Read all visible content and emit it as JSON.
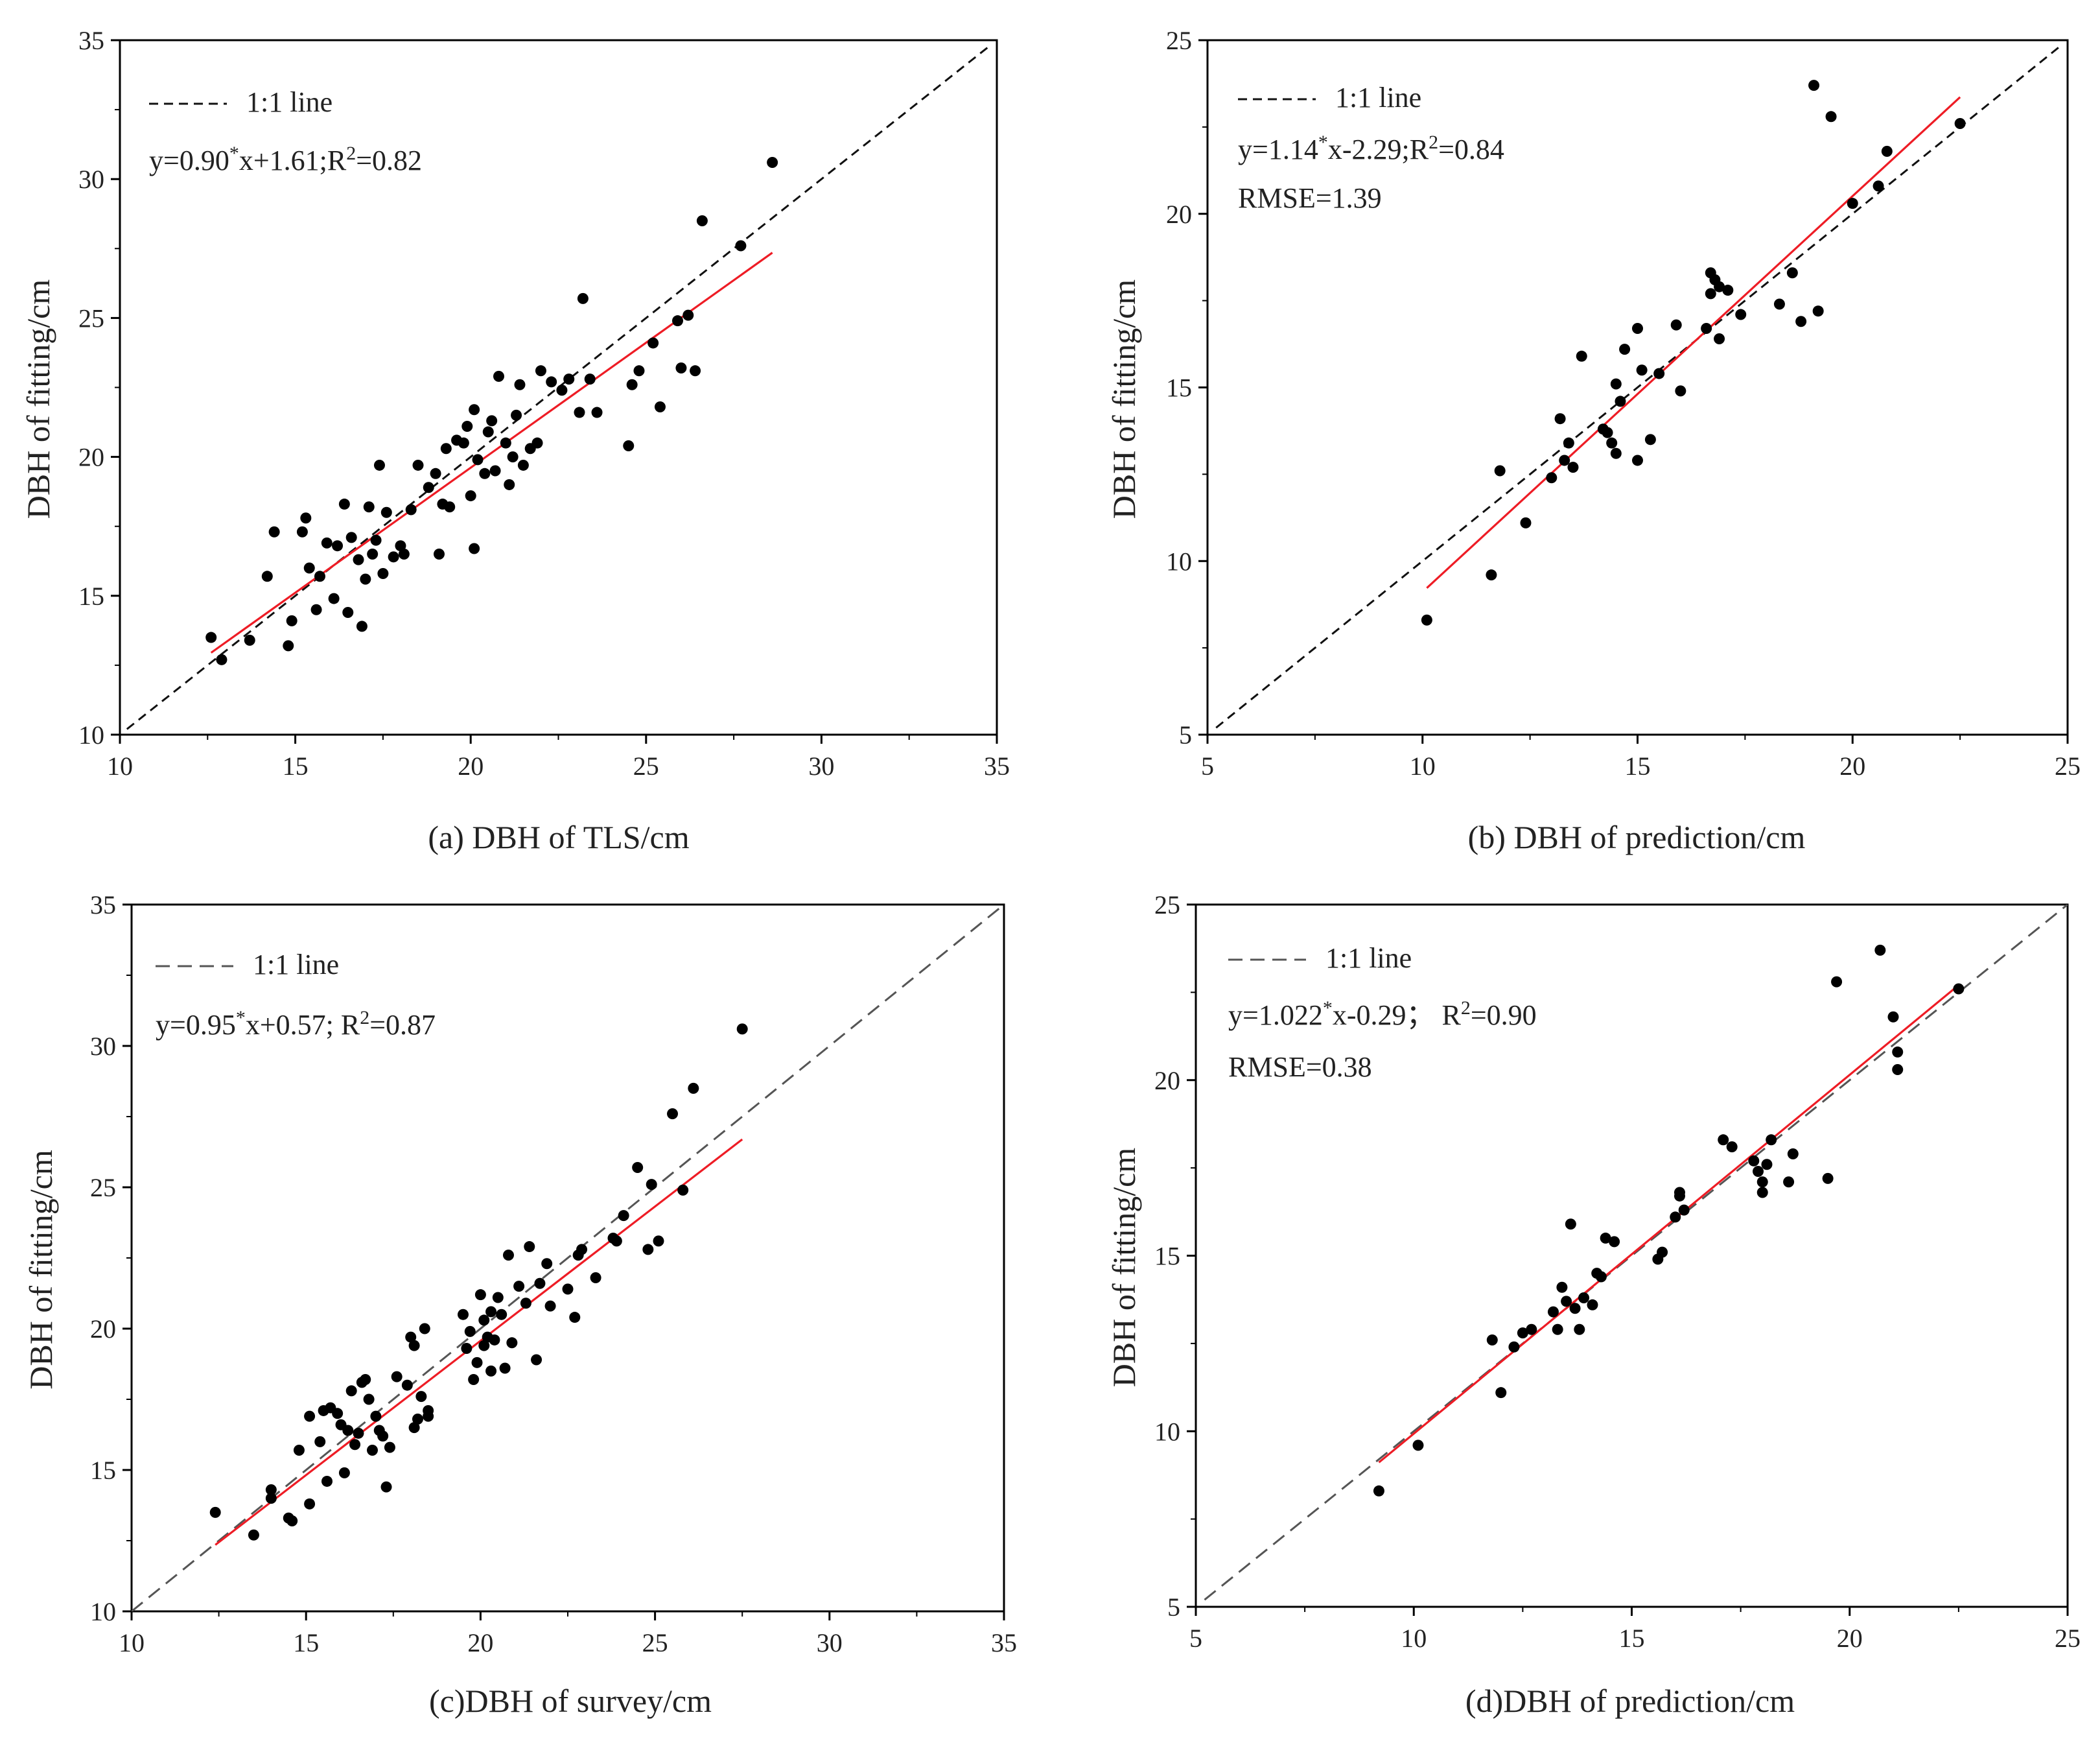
{
  "colors": {
    "fit_line": "#ee1c25",
    "points": "#000000",
    "ref_line_ab": "#111111",
    "ref_line_cd": "#555555",
    "axis": "#000000"
  },
  "chart_data": [
    {
      "type": "scatter",
      "panel": "a",
      "xlabel": "(a) DBH of TLS/cm",
      "ylabel": "DBH of fitting/cm",
      "xlim": [
        10,
        35
      ],
      "ylim": [
        10,
        35
      ],
      "xticks": [
        "10",
        "15",
        "20",
        "25",
        "30",
        "35"
      ],
      "yticks": [
        "10",
        "15",
        "20",
        "25",
        "30",
        "35"
      ],
      "legend_label": "1:1 line",
      "equation": {
        "pre": "y=0.90",
        "star": "*",
        "mid": "x+1.61;R",
        "sup": "2",
        "post": "=0.82"
      },
      "rmse": "",
      "fit": {
        "slope": 0.9,
        "intercept": 1.61,
        "x_range": [
          12.6,
          28.6
        ]
      },
      "ref_line_range": [
        10.2,
        34.8
      ],
      "points": [
        [
          12.6,
          13.5
        ],
        [
          12.9,
          12.7
        ],
        [
          13.7,
          13.4
        ],
        [
          14.2,
          15.7
        ],
        [
          14.4,
          17.3
        ],
        [
          14.8,
          13.2
        ],
        [
          14.9,
          14.1
        ],
        [
          15.2,
          17.3
        ],
        [
          15.3,
          17.8
        ],
        [
          15.4,
          16
        ],
        [
          15.6,
          14.5
        ],
        [
          15.7,
          15.7
        ],
        [
          15.9,
          16.9
        ],
        [
          16.1,
          14.9
        ],
        [
          16.2,
          16.8
        ],
        [
          16.4,
          18.3
        ],
        [
          16.5,
          14.4
        ],
        [
          16.6,
          17.1
        ],
        [
          16.8,
          16.3
        ],
        [
          16.9,
          13.9
        ],
        [
          17.0,
          15.6
        ],
        [
          17.1,
          18.2
        ],
        [
          17.2,
          16.5
        ],
        [
          17.3,
          17
        ],
        [
          17.4,
          19.7
        ],
        [
          17.5,
          15.8
        ],
        [
          17.6,
          18
        ],
        [
          17.8,
          16.4
        ],
        [
          18.0,
          16.8
        ],
        [
          18.1,
          16.5
        ],
        [
          18.3,
          18.1
        ],
        [
          18.5,
          19.7
        ],
        [
          18.8,
          18.9
        ],
        [
          19.0,
          19.4
        ],
        [
          19.1,
          16.5
        ],
        [
          19.2,
          18.3
        ],
        [
          19.3,
          20.3
        ],
        [
          19.4,
          18.2
        ],
        [
          19.6,
          20.6
        ],
        [
          19.8,
          20.5
        ],
        [
          19.9,
          21.1
        ],
        [
          20.0,
          18.6
        ],
        [
          20.1,
          16.7
        ],
        [
          20.1,
          21.7
        ],
        [
          20.2,
          19.9
        ],
        [
          20.4,
          19.4
        ],
        [
          20.5,
          20.9
        ],
        [
          20.6,
          21.3
        ],
        [
          20.7,
          19.5
        ],
        [
          20.8,
          22.9
        ],
        [
          21.0,
          20.5
        ],
        [
          21.1,
          19
        ],
        [
          21.2,
          20
        ],
        [
          21.3,
          21.5
        ],
        [
          21.4,
          22.6
        ],
        [
          21.5,
          19.7
        ],
        [
          21.7,
          20.3
        ],
        [
          21.9,
          20.5
        ],
        [
          22.0,
          23.1
        ],
        [
          22.3,
          22.7
        ],
        [
          22.6,
          22.4
        ],
        [
          22.8,
          22.8
        ],
        [
          23.1,
          21.6
        ],
        [
          23.2,
          25.7
        ],
        [
          23.4,
          22.8
        ],
        [
          23.6,
          21.6
        ],
        [
          24.5,
          20.4
        ],
        [
          24.6,
          22.6
        ],
        [
          24.8,
          23.1
        ],
        [
          25.2,
          24.1
        ],
        [
          25.4,
          21.8
        ],
        [
          25.9,
          24.9
        ],
        [
          26.0,
          23.2
        ],
        [
          26.2,
          25.1
        ],
        [
          26.4,
          23.1
        ],
        [
          26.6,
          28.5
        ],
        [
          27.7,
          27.6
        ],
        [
          28.6,
          30.6
        ]
      ]
    },
    {
      "type": "scatter",
      "panel": "b",
      "xlabel": "(b) DBH of prediction/cm",
      "ylabel": "DBH of fitting/cm",
      "xlim": [
        5,
        25
      ],
      "ylim": [
        5,
        25
      ],
      "xticks": [
        "5",
        "10",
        "15",
        "20",
        "25"
      ],
      "yticks": [
        "5",
        "10",
        "15",
        "20",
        "25"
      ],
      "legend_label": "1:1 line",
      "equation": {
        "pre": "y=1.14",
        "star": "*",
        "mid": "x-2.29;R",
        "sup": "2",
        "post": "=0.84"
      },
      "rmse": "RMSE=1.39",
      "fit": {
        "slope": 1.14,
        "intercept": -2.29,
        "x_range": [
          10.1,
          22.5
        ]
      },
      "ref_line_range": [
        5.2,
        24.8
      ],
      "points": [
        [
          10.1,
          8.3
        ],
        [
          11.6,
          9.6
        ],
        [
          11.8,
          12.6
        ],
        [
          12.4,
          11.1
        ],
        [
          13.0,
          12.4
        ],
        [
          13.2,
          14.1
        ],
        [
          13.3,
          12.9
        ],
        [
          13.4,
          13.4
        ],
        [
          13.5,
          12.7
        ],
        [
          13.7,
          15.9
        ],
        [
          14.2,
          13.8
        ],
        [
          14.3,
          13.7
        ],
        [
          14.4,
          13.4
        ],
        [
          14.5,
          15.1
        ],
        [
          14.5,
          13.1
        ],
        [
          14.6,
          14.6
        ],
        [
          14.7,
          16.1
        ],
        [
          15.0,
          16.7
        ],
        [
          15.0,
          12.9
        ],
        [
          15.1,
          15.5
        ],
        [
          15.3,
          13.5
        ],
        [
          15.5,
          15.4
        ],
        [
          15.9,
          16.8
        ],
        [
          16.0,
          14.9
        ],
        [
          16.6,
          16.7
        ],
        [
          16.7,
          18.3
        ],
        [
          16.8,
          18.1
        ],
        [
          16.7,
          17.7
        ],
        [
          16.9,
          17.9
        ],
        [
          16.9,
          16.4
        ],
        [
          17.1,
          17.8
        ],
        [
          17.4,
          17.1
        ],
        [
          18.3,
          17.4
        ],
        [
          18.6,
          18.3
        ],
        [
          18.8,
          16.9
        ],
        [
          19.1,
          23.7
        ],
        [
          19.2,
          17.2
        ],
        [
          19.5,
          22.8
        ],
        [
          20.0,
          20.3
        ],
        [
          20.6,
          20.8
        ],
        [
          20.8,
          21.8
        ],
        [
          22.5,
          22.6
        ]
      ]
    },
    {
      "type": "scatter",
      "panel": "c",
      "xlabel": "(c)DBH of survey/cm",
      "ylabel": "DBH of fitting/cm",
      "xlim": [
        10,
        35
      ],
      "ylim": [
        10,
        35
      ],
      "xticks": [
        "10",
        "15",
        "20",
        "25",
        "30",
        "35"
      ],
      "yticks": [
        "10",
        "15",
        "20",
        "25",
        "30",
        "35"
      ],
      "legend_label": "1:1 line",
      "equation": {
        "pre": "y=0.95",
        "star": "*",
        "mid": "x+0.57; R",
        "sup": "2",
        "post": "=0.87"
      },
      "rmse": "",
      "fit": {
        "slope": 0.95,
        "intercept": 0.57,
        "x_range": [
          12.4,
          27.5
        ]
      },
      "ref_line_range": [
        10,
        35
      ],
      "points": [
        [
          12.4,
          13.5
        ],
        [
          13.5,
          12.7
        ],
        [
          14.0,
          14.3
        ],
        [
          14.0,
          14
        ],
        [
          14.5,
          13.3
        ],
        [
          14.6,
          13.2
        ],
        [
          14.8,
          15.7
        ],
        [
          15.1,
          16.9
        ],
        [
          15.1,
          13.8
        ],
        [
          15.4,
          16
        ],
        [
          15.5,
          17.1
        ],
        [
          15.6,
          14.6
        ],
        [
          15.7,
          17.2
        ],
        [
          15.9,
          17
        ],
        [
          16.0,
          16.6
        ],
        [
          16.1,
          14.9
        ],
        [
          16.2,
          16.4
        ],
        [
          16.3,
          17.8
        ],
        [
          16.4,
          15.9
        ],
        [
          16.5,
          16.3
        ],
        [
          16.6,
          18.1
        ],
        [
          16.7,
          18.2
        ],
        [
          16.8,
          17.5
        ],
        [
          16.9,
          15.7
        ],
        [
          17.0,
          16.9
        ],
        [
          17.1,
          16.4
        ],
        [
          17.2,
          16.2
        ],
        [
          17.3,
          14.4
        ],
        [
          17.4,
          15.8
        ],
        [
          17.6,
          18.3
        ],
        [
          17.9,
          18
        ],
        [
          18.0,
          19.7
        ],
        [
          18.1,
          19.4
        ],
        [
          18.1,
          16.5
        ],
        [
          18.2,
          16.8
        ],
        [
          18.3,
          17.6
        ],
        [
          18.4,
          20
        ],
        [
          18.5,
          16.9
        ],
        [
          18.5,
          17.1
        ],
        [
          19.5,
          20.5
        ],
        [
          19.6,
          19.3
        ],
        [
          19.7,
          19.9
        ],
        [
          19.8,
          18.2
        ],
        [
          19.9,
          18.8
        ],
        [
          20.0,
          21.2
        ],
        [
          20.1,
          19.4
        ],
        [
          20.1,
          20.3
        ],
        [
          20.2,
          19.7
        ],
        [
          20.3,
          18.5
        ],
        [
          20.3,
          20.6
        ],
        [
          20.4,
          19.6
        ],
        [
          20.5,
          21.1
        ],
        [
          20.6,
          20.5
        ],
        [
          20.7,
          18.6
        ],
        [
          20.8,
          22.6
        ],
        [
          20.9,
          19.5
        ],
        [
          21.1,
          21.5
        ],
        [
          21.3,
          20.9
        ],
        [
          21.4,
          22.9
        ],
        [
          21.6,
          18.9
        ],
        [
          21.7,
          21.6
        ],
        [
          21.9,
          22.3
        ],
        [
          22.0,
          20.8
        ],
        [
          22.5,
          21.4
        ],
        [
          22.7,
          20.4
        ],
        [
          22.8,
          22.6
        ],
        [
          22.9,
          22.8
        ],
        [
          23.3,
          21.8
        ],
        [
          23.8,
          23.2
        ],
        [
          23.9,
          23.1
        ],
        [
          24.1,
          24
        ],
        [
          24.5,
          25.7
        ],
        [
          24.8,
          22.8
        ],
        [
          24.9,
          25.1
        ],
        [
          25.1,
          23.1
        ],
        [
          25.5,
          27.6
        ],
        [
          25.8,
          24.9
        ],
        [
          26.1,
          28.5
        ],
        [
          27.5,
          30.6
        ]
      ]
    },
    {
      "type": "scatter",
      "panel": "d",
      "xlabel": "(d)DBH of prediction/cm",
      "ylabel": "DBH of fitting/cm",
      "xlim": [
        5,
        25
      ],
      "ylim": [
        5,
        25
      ],
      "xticks": [
        "5",
        "10",
        "15",
        "20",
        "25"
      ],
      "yticks": [
        "5",
        "10",
        "15",
        "20",
        "25"
      ],
      "legend_label": "1:1 line",
      "equation": {
        "pre": "y=1.022",
        "star": "*",
        "mid": "x-0.29； R",
        "sup": "2",
        "post": "=0.90"
      },
      "rmse": "RMSE=0.38",
      "fit": {
        "slope": 1.022,
        "intercept": -0.29,
        "x_range": [
          9.2,
          22.5
        ]
      },
      "ref_line_range": [
        5.2,
        25
      ],
      "points": [
        [
          9.2,
          8.3
        ],
        [
          10.1,
          9.6
        ],
        [
          11.8,
          12.6
        ],
        [
          12.0,
          11.1
        ],
        [
          12.3,
          12.4
        ],
        [
          12.5,
          12.8
        ],
        [
          12.7,
          12.9
        ],
        [
          13.2,
          13.4
        ],
        [
          13.3,
          12.9
        ],
        [
          13.4,
          14.1
        ],
        [
          13.5,
          13.7
        ],
        [
          13.6,
          15.9
        ],
        [
          13.7,
          13.5
        ],
        [
          13.8,
          12.9
        ],
        [
          13.9,
          13.8
        ],
        [
          14.1,
          13.6
        ],
        [
          14.2,
          14.5
        ],
        [
          14.3,
          14.4
        ],
        [
          14.4,
          15.5
        ],
        [
          14.6,
          15.4
        ],
        [
          15.6,
          14.9
        ],
        [
          15.7,
          15.1
        ],
        [
          16.0,
          16.1
        ],
        [
          16.1,
          16.8
        ],
        [
          16.1,
          16.7
        ],
        [
          16.2,
          16.3
        ],
        [
          17.1,
          18.3
        ],
        [
          17.3,
          18.1
        ],
        [
          17.8,
          17.7
        ],
        [
          17.9,
          17.4
        ],
        [
          18.0,
          17.1
        ],
        [
          18.0,
          16.8
        ],
        [
          18.1,
          17.6
        ],
        [
          18.2,
          18.3
        ],
        [
          18.6,
          17.1
        ],
        [
          18.7,
          17.9
        ],
        [
          19.5,
          17.2
        ],
        [
          19.7,
          22.8
        ],
        [
          20.7,
          23.7
        ],
        [
          21.0,
          21.8
        ],
        [
          21.1,
          20.8
        ],
        [
          21.1,
          20.3
        ],
        [
          22.5,
          22.6
        ]
      ]
    }
  ]
}
